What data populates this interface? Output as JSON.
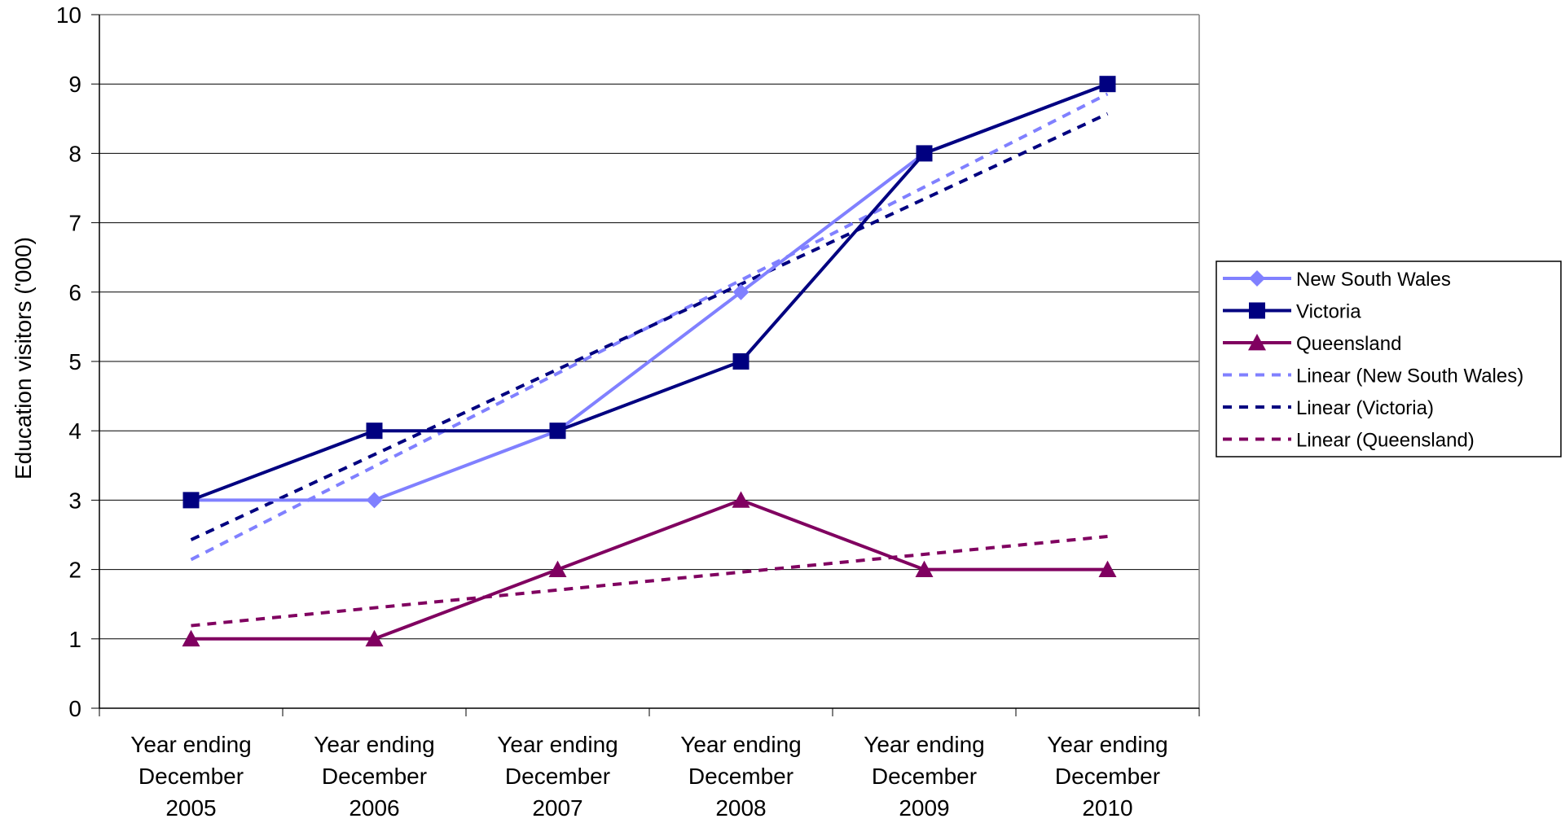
{
  "chart_data": {
    "type": "line",
    "title": "",
    "xlabel": "",
    "ylabel": "Education visitors ('000)",
    "ylim": [
      0,
      10
    ],
    "yticks": [
      0,
      1,
      2,
      3,
      4,
      5,
      6,
      7,
      8,
      9,
      10
    ],
    "grid": "horizontal",
    "legend_position": "right",
    "categories": [
      [
        "Year ending",
        "December",
        "2005"
      ],
      [
        "Year ending",
        "December",
        "2006"
      ],
      [
        "Year ending",
        "December",
        "2007"
      ],
      [
        "Year ending",
        "December",
        "2008"
      ],
      [
        "Year ending",
        "December",
        "2009"
      ],
      [
        "Year ending",
        "December",
        "2010"
      ]
    ],
    "series": [
      {
        "name": "New South Wales",
        "values": [
          3,
          3,
          4,
          6,
          8,
          9
        ],
        "color": "#8080ff",
        "marker": "diamond",
        "style": "solid"
      },
      {
        "name": "Victoria",
        "values": [
          3,
          4,
          4,
          5,
          8,
          9
        ],
        "color": "#000080",
        "marker": "square",
        "style": "solid"
      },
      {
        "name": "Queensland",
        "values": [
          1,
          1,
          2,
          3,
          2,
          2
        ],
        "color": "#800060",
        "marker": "triangle",
        "style": "solid"
      }
    ],
    "trendlines": [
      {
        "name": "Linear (New South Wales)",
        "of": "New South Wales",
        "color": "#8080ff",
        "style": "dashed"
      },
      {
        "name": "Linear (Victoria)",
        "of": "Victoria",
        "color": "#000080",
        "style": "dashed"
      },
      {
        "name": "Linear (Queensland)",
        "of": "Queensland",
        "color": "#800060",
        "style": "dashed"
      }
    ]
  }
}
